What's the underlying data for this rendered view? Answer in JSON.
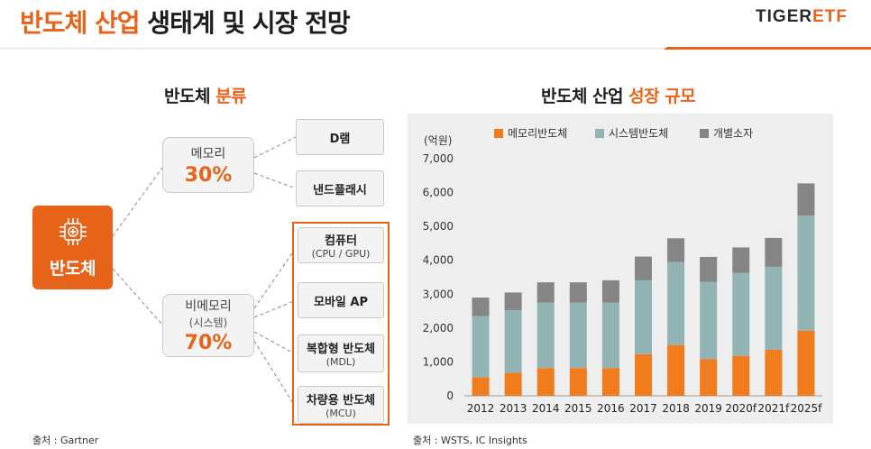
{
  "header": {
    "title_accent": "반도체 산업",
    "title_rest": " 생태계 및 시장 전망",
    "brand_part1": "TIGER",
    "brand_part2": "ETF"
  },
  "classification": {
    "title_plain": "반도체 ",
    "title_accent": "분류",
    "root": "반도체",
    "memory": {
      "name": "메모리",
      "pct": "30%",
      "items": [
        "D램",
        "낸드플래시"
      ]
    },
    "nonmemory": {
      "name": "비메모리",
      "sub": "(시스템)",
      "pct": "70%",
      "items": [
        {
          "name": "컴퓨터",
          "sub": "(CPU / GPU)"
        },
        {
          "name": "모바일 AP",
          "sub": ""
        },
        {
          "name": "복합형 반도체",
          "sub": "(MDL)"
        },
        {
          "name": "차량용 반도체",
          "sub": "(MCU)"
        }
      ]
    },
    "source": "출처 : Gartner"
  },
  "market": {
    "title_plain": "반도체 산업 ",
    "title_accent": "성장 규모",
    "source": "출처 : WSTS, IC Insights"
  },
  "colors": {
    "memory": "#f07c1e",
    "system": "#92b4b4",
    "discrete": "#858585",
    "accent": "#e8631a"
  },
  "chart_data": {
    "type": "bar",
    "stacked": true,
    "title": "반도체 산업 성장 규모",
    "ylabel": "(억원)",
    "ylim": [
      0,
      7000
    ],
    "yticks": [
      0,
      1000,
      2000,
      3000,
      4000,
      5000,
      6000,
      7000
    ],
    "ytick_labels": [
      "0",
      "1,000",
      "2,000",
      "3,000",
      "4,000",
      "5,000",
      "6,000",
      "7,000"
    ],
    "categories": [
      "2012",
      "2013",
      "2014",
      "2015",
      "2016",
      "2017",
      "2018",
      "2019",
      "2020f",
      "2021f",
      "2025f"
    ],
    "series": [
      {
        "name": "메모리반도체",
        "values": [
          550,
          680,
          820,
          820,
          820,
          1230,
          1500,
          1080,
          1180,
          1360,
          1920
        ]
      },
      {
        "name": "시스템반도체",
        "values": [
          1800,
          1850,
          1930,
          1930,
          1930,
          2180,
          2450,
          2280,
          2450,
          2450,
          3400
        ]
      },
      {
        "name": "개별소자",
        "values": [
          550,
          520,
          600,
          600,
          660,
          700,
          700,
          740,
          750,
          850,
          950
        ]
      }
    ],
    "legend": "top",
    "grid": false
  }
}
